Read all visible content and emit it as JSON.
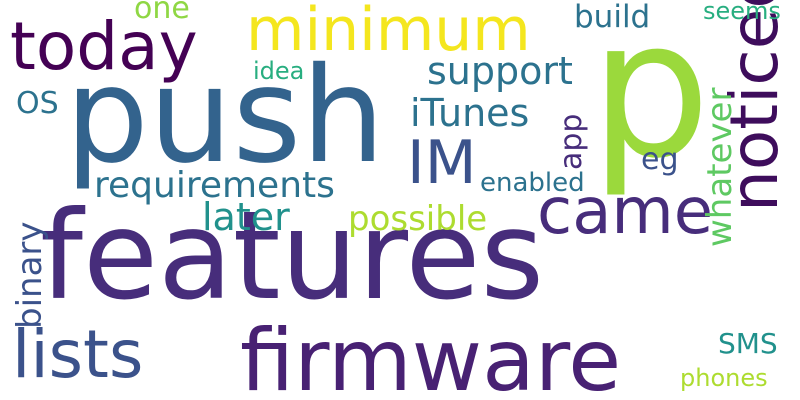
{
  "palette": {
    "background": "#ffffff",
    "dark_purple": "#440154",
    "purple": "#472d7b",
    "indigo": "#3b528b",
    "blue": "#2c728e",
    "teal": "#21918c",
    "green_teal": "#28ae80",
    "green": "#5ec962",
    "lime": "#addc30",
    "yellow": "#f4e61e"
  },
  "words": {
    "features": "features",
    "p": "p",
    "push": "push",
    "firmware": "firmware",
    "noticed": "noticed",
    "today": "today",
    "minimum": "minimum",
    "came": "came",
    "lists": "lists",
    "IM": "IM",
    "requirements": "requirements",
    "support": "support",
    "iTunes": "iTunes",
    "later": "later",
    "possible": "possible",
    "whatever": "whatever",
    "binary": "binary",
    "build": "build",
    "one": "one",
    "seems": "seems",
    "idea": "idea",
    "OS": "OS",
    "app": "app",
    "eg": "eg",
    "enabled": "enabled",
    "SMS": "SMS",
    "phones": "phones"
  }
}
